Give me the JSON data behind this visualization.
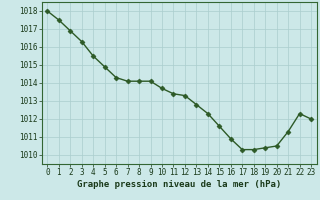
{
  "x": [
    0,
    1,
    2,
    3,
    4,
    5,
    6,
    7,
    8,
    9,
    10,
    11,
    12,
    13,
    14,
    15,
    16,
    17,
    18,
    19,
    20,
    21,
    22,
    23
  ],
  "y": [
    1018.0,
    1017.5,
    1016.9,
    1016.3,
    1015.5,
    1014.9,
    1014.3,
    1014.1,
    1014.1,
    1014.1,
    1013.7,
    1013.4,
    1013.3,
    1012.8,
    1012.3,
    1011.6,
    1010.9,
    1010.3,
    1010.3,
    1010.4,
    1010.5,
    1011.3,
    1012.3,
    1012.0
  ],
  "line_color": "#2d5a27",
  "marker": "D",
  "markersize": 2.5,
  "linewidth": 1.0,
  "bg_color": "#cce8e8",
  "grid_color": "#aacece",
  "xlabel": "Graphe pression niveau de la mer (hPa)",
  "xlabel_fontsize": 6.5,
  "xlabel_color": "#1a3a1a",
  "tick_fontsize": 5.5,
  "tick_color": "#1a3a1a",
  "ylim": [
    1009.5,
    1018.5
  ],
  "xlim": [
    -0.5,
    23.5
  ],
  "yticks": [
    1010,
    1011,
    1012,
    1013,
    1014,
    1015,
    1016,
    1017,
    1018
  ],
  "xticks": [
    0,
    1,
    2,
    3,
    4,
    5,
    6,
    7,
    8,
    9,
    10,
    11,
    12,
    13,
    14,
    15,
    16,
    17,
    18,
    19,
    20,
    21,
    22,
    23
  ]
}
